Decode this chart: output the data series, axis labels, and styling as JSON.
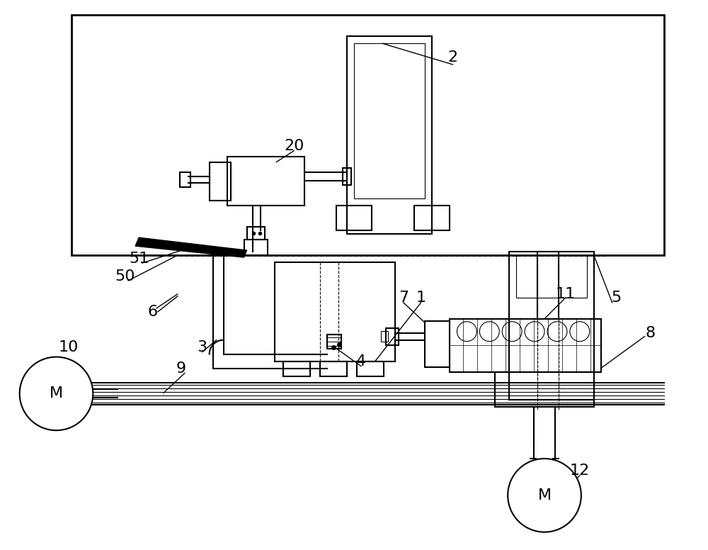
{
  "bg_color": "#ffffff",
  "line_color": "#000000",
  "lw": 1.5,
  "lw_thin": 0.8,
  "fig_width": 10.0,
  "fig_height": 7.76
}
